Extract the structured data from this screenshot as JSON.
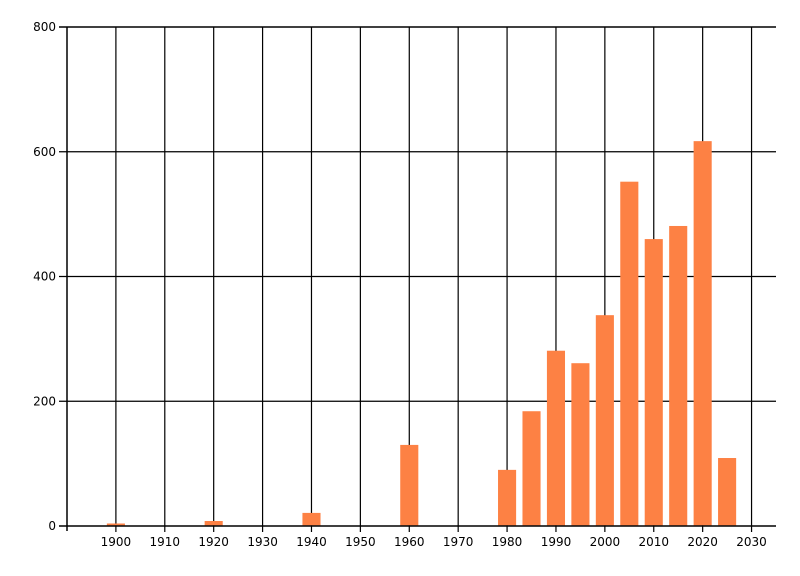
{
  "chart_data": {
    "type": "bar",
    "title": "",
    "xlabel": "",
    "ylabel": "",
    "x": [
      1900,
      1920,
      1940,
      1960,
      1980,
      1985,
      1990,
      1995,
      2000,
      2005,
      2010,
      2015,
      2020,
      2025
    ],
    "values": [
      4,
      8,
      21,
      130,
      90,
      184,
      281,
      261,
      338,
      552,
      460,
      481,
      617,
      109
    ],
    "xlim": [
      1890,
      2035
    ],
    "ylim": [
      0,
      800
    ],
    "x_ticks": [
      1900,
      1910,
      1920,
      1930,
      1940,
      1950,
      1960,
      1970,
      1980,
      1990,
      2000,
      2010,
      2020,
      2030
    ],
    "y_ticks": [
      0,
      200,
      400,
      600,
      800
    ],
    "grid": true,
    "legend_position": "none",
    "bar_width_years": 3.7,
    "colors": {
      "bar": "#FD8144",
      "grid": "#000000",
      "axis": "#000000",
      "text": "#000000",
      "background": "#FFFFFF"
    }
  }
}
